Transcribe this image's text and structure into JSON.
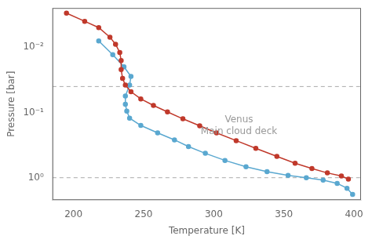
{
  "chart_data": {
    "type": "line",
    "xlabel": "Temperature [K]",
    "ylabel": "Pressure [bar]",
    "log": "y",
    "grid": false,
    "xlim": [
      185,
      405
    ],
    "xticks": [
      200,
      250,
      300,
      350,
      400
    ],
    "ylim": [
      2.2,
      0.0025
    ],
    "yticks": [
      {
        "value": 0.01,
        "label": "10⁻²"
      },
      {
        "value": 0.1,
        "label": "10⁻¹"
      },
      {
        "value": 1,
        "label": "10⁰"
      }
    ],
    "series": [
      {
        "color": "#c0392b",
        "marker": "circle",
        "line_style": "solid",
        "x": [
          195,
          208,
          218,
          226,
          230,
          233,
          234,
          234,
          235,
          237,
          241,
          248,
          257,
          267,
          278,
          290,
          302,
          316,
          330,
          345,
          358,
          370,
          381,
          391,
          396
        ],
        "values": [
          0.003,
          0.004,
          0.005,
          0.007,
          0.009,
          0.012,
          0.016,
          0.022,
          0.03,
          0.038,
          0.048,
          0.062,
          0.078,
          0.098,
          0.125,
          0.16,
          0.205,
          0.27,
          0.355,
          0.47,
          0.6,
          0.725,
          0.845,
          0.94,
          1.05
        ]
      },
      {
        "color": "#5aa8d0",
        "marker": "circle",
        "line_style": "solid",
        "x": [
          218,
          228,
          236,
          241,
          240,
          237,
          237,
          238,
          240,
          248,
          260,
          272,
          282,
          294,
          308,
          323,
          338,
          353,
          366,
          378,
          388,
          395,
          399
        ],
        "values": [
          0.008,
          0.013,
          0.02,
          0.028,
          0.038,
          0.056,
          0.075,
          0.095,
          0.122,
          0.158,
          0.205,
          0.263,
          0.333,
          0.423,
          0.543,
          0.68,
          0.81,
          0.92,
          1.0,
          1.09,
          1.22,
          1.45,
          1.8
        ]
      }
    ],
    "hlines": [
      {
        "y": 0.04,
        "color": "#aaaaaa",
        "line_style": "dashed"
      },
      {
        "y": 1.0,
        "color": "#aaaaaa",
        "line_style": "dashed"
      }
    ],
    "annotations": [
      {
        "text": "Venus\nMain cloud deck",
        "x": 318,
        "y": 0.16,
        "color": "#999999"
      }
    ]
  }
}
